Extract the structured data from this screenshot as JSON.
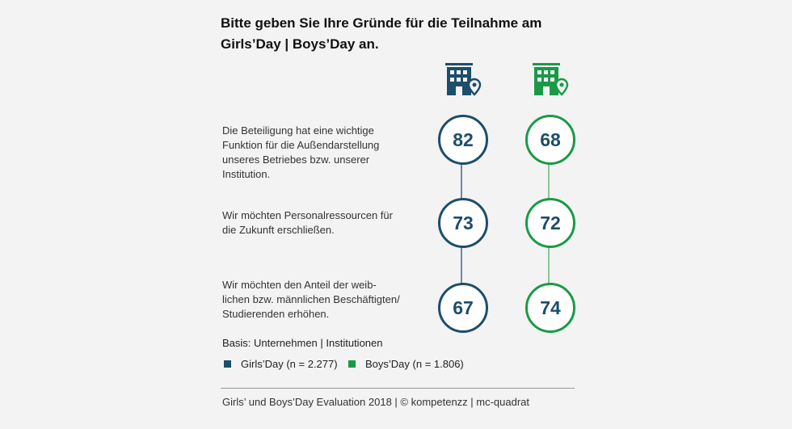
{
  "title": {
    "line1": "Bitte geben Sie Ihre Gründe für die Teilnahme am",
    "line2": "Girls’Day | Boys’Day an."
  },
  "icons": {
    "girls": "building-location-icon",
    "boys": "building-location-icon"
  },
  "colors": {
    "girls": "#1d4e6b",
    "boys": "#1a9a47",
    "girls_line": "#6e8aa0",
    "boys_line": "#8ac79b"
  },
  "chart_data": {
    "type": "table",
    "categories": [
      "Die Beteiligung hat eine wichtige Funktion für die Außendarstellung unseres Betriebes bzw. unserer Institution.",
      "Wir möchten Personalressourcen für die Zukunft erschließen.",
      "Wir möchten den Anteil der weiblichen bzw. männlichen Beschäftigten/ Studierenden erhöhen."
    ],
    "category_lines": [
      [
        "Die Beteiligung hat eine wichtige",
        "Funktion für die Außendarstellung",
        "unseres Betriebes bzw. unserer",
        "Institution."
      ],
      [
        "Wir möchten Personalressourcen für",
        "die Zukunft erschließen."
      ],
      [
        "Wir möchten den Anteil der weib-",
        "lichen bzw. männlichen Beschäftigten/",
        "Studierenden erhöhen."
      ]
    ],
    "series": [
      {
        "name": "Girls’Day (n = 2.277)",
        "values": [
          82,
          73,
          67
        ]
      },
      {
        "name": "Boys’Day (n = 1.806)",
        "values": [
          68,
          72,
          74
        ]
      }
    ]
  },
  "basis": "Basis: Unternehmen | Institutionen",
  "legend": {
    "girls": "Girls’Day (n = 2.277)",
    "boys": "Boys’Day (n = 1.806)"
  },
  "footer": "Girls’ und Boys’Day Evaluation 2018 | © kompetenzz | mc-quadrat"
}
